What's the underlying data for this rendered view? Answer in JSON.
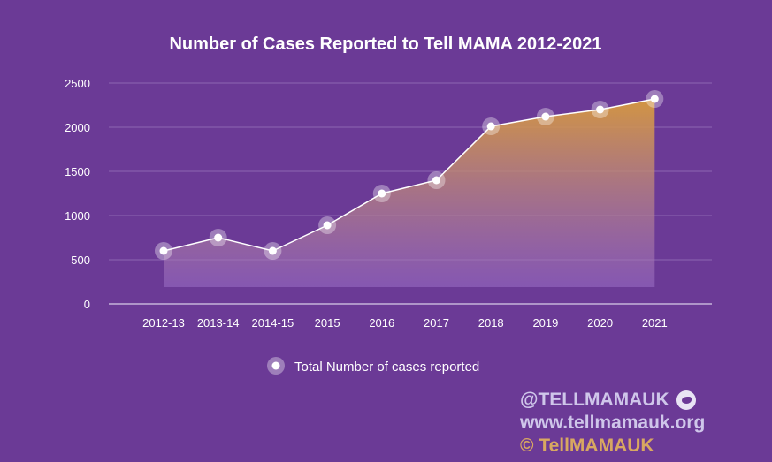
{
  "chart_data": {
    "type": "area",
    "title": "Number of Cases Reported to Tell MAMA 2012-2021",
    "xlabel": "",
    "ylabel": "",
    "categories": [
      "2012-13",
      "2013-14",
      "2014-15",
      "2015",
      "2016",
      "2017",
      "2018",
      "2019",
      "2020",
      "2021"
    ],
    "series": [
      {
        "name": "Total Number of cases reported",
        "values": [
          600,
          750,
          600,
          890,
          1250,
          1400,
          2010,
          2120,
          2200,
          2320
        ]
      }
    ],
    "ylim": [
      0,
      2500
    ],
    "yticks": [
      0,
      500,
      1000,
      1500,
      2000,
      2500
    ],
    "grid": true,
    "legend": "bottom-center"
  },
  "colors": {
    "background": "#6b3a96",
    "area_top": "#d89a3e",
    "area_bottom": "#8a5bb8",
    "line": "#ffffff",
    "grid": "#8d66b3"
  },
  "footer": {
    "handle": "@TELLMAMAUK",
    "handle_icon": "twitter-icon",
    "website": "www.tellmamauk.org",
    "copyright": "© TellMAMAUK"
  }
}
